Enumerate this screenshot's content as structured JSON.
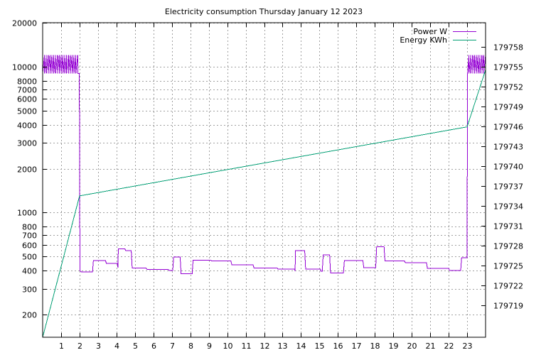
{
  "chart_data": {
    "type": "line",
    "title": "Electricity consumption Thursday January 12 2023",
    "xlabel": "",
    "ylabel": "",
    "xlim": [
      0,
      24
    ],
    "ylim_left": [
      140,
      20000
    ],
    "ylim_left_scale": "log",
    "ylim_right": [
      179714.2,
      179761.6
    ],
    "x_ticks": [
      "1",
      "2",
      "3",
      "4",
      "5",
      "6",
      "7",
      "8",
      "9",
      "10",
      "11",
      "12",
      "13",
      "14",
      "15",
      "16",
      "17",
      "18",
      "19",
      "20",
      "21",
      "22",
      "23"
    ],
    "y_left_ticks": [
      {
        "value": 200,
        "label": "200"
      },
      {
        "value": 300,
        "label": "300"
      },
      {
        "value": 400,
        "label": "400"
      },
      {
        "value": 500,
        "label": "500"
      },
      {
        "value": 600,
        "label": "600"
      },
      {
        "value": 700,
        "label": "700"
      },
      {
        "value": 800,
        "label": "800"
      },
      {
        "value": 1000,
        "label": "1000"
      },
      {
        "value": 2000,
        "label": "2000"
      },
      {
        "value": 3000,
        "label": "3000"
      },
      {
        "value": 4000,
        "label": "4000"
      },
      {
        "value": 5000,
        "label": "5000"
      },
      {
        "value": 6000,
        "label": "6000"
      },
      {
        "value": 7000,
        "label": "7000"
      },
      {
        "value": 8000,
        "label": "8000"
      },
      {
        "value": 10000,
        "label": "10000"
      },
      {
        "value": 20000,
        "label": "20000"
      }
    ],
    "y_right_ticks": [
      {
        "value": 179719,
        "label": "179719"
      },
      {
        "value": 179722,
        "label": "179722"
      },
      {
        "value": 179725,
        "label": "179725"
      },
      {
        "value": 179728,
        "label": "179728"
      },
      {
        "value": 179731,
        "label": "179731"
      },
      {
        "value": 179734,
        "label": "179734"
      },
      {
        "value": 179737,
        "label": "179737"
      },
      {
        "value": 179740,
        "label": "179740"
      },
      {
        "value": 179743,
        "label": "179743"
      },
      {
        "value": 179746,
        "label": "179746"
      },
      {
        "value": 179749,
        "label": "179749"
      },
      {
        "value": 179752,
        "label": "179752"
      },
      {
        "value": 179755,
        "label": "179755"
      },
      {
        "value": 179758,
        "label": "179758"
      }
    ],
    "grid": true,
    "legend_placement": "top-right",
    "series": [
      {
        "name": "Power W",
        "axis": "left",
        "color": "#9400d3",
        "steps": [
          [
            0.0,
            12000
          ],
          [
            0.0,
            9000
          ],
          [
            0.1,
            12000
          ],
          [
            0.1,
            9000
          ],
          [
            0.2,
            12000
          ],
          [
            0.2,
            9000
          ],
          [
            0.3,
            12000
          ],
          [
            0.3,
            9000
          ],
          [
            0.4,
            12000
          ],
          [
            0.4,
            9000
          ],
          [
            0.5,
            12000
          ],
          [
            0.5,
            9000
          ],
          [
            0.6,
            12000
          ],
          [
            0.6,
            9000
          ],
          [
            0.7,
            12000
          ],
          [
            0.7,
            9000
          ],
          [
            0.8,
            12000
          ],
          [
            0.8,
            9000
          ],
          [
            0.9,
            12000
          ],
          [
            0.9,
            9000
          ],
          [
            1.0,
            12000
          ],
          [
            1.0,
            9000
          ],
          [
            1.1,
            12000
          ],
          [
            1.1,
            9000
          ],
          [
            1.2,
            12000
          ],
          [
            1.2,
            9000
          ],
          [
            1.3,
            12000
          ],
          [
            1.3,
            9000
          ],
          [
            1.4,
            12000
          ],
          [
            1.4,
            9000
          ],
          [
            1.5,
            12000
          ],
          [
            1.5,
            9000
          ],
          [
            1.6,
            12000
          ],
          [
            1.6,
            9000
          ],
          [
            1.7,
            12000
          ],
          [
            1.7,
            9000
          ],
          [
            1.8,
            12000
          ],
          [
            1.8,
            9000
          ],
          [
            1.9,
            12000
          ],
          [
            1.9,
            9000
          ],
          [
            1.98,
            9000
          ],
          [
            2.0,
            4000
          ],
          [
            2.02,
            400
          ],
          [
            2.1,
            392
          ],
          [
            2.7,
            392
          ],
          [
            2.75,
            470
          ],
          [
            3.4,
            470
          ],
          [
            3.45,
            450
          ],
          [
            4.05,
            450
          ],
          [
            4.08,
            420
          ],
          [
            4.1,
            565
          ],
          [
            4.45,
            565
          ],
          [
            4.5,
            550
          ],
          [
            4.8,
            550
          ],
          [
            4.85,
            418
          ],
          [
            5.6,
            418
          ],
          [
            5.65,
            408
          ],
          [
            6.8,
            408
          ],
          [
            6.85,
            402
          ],
          [
            7.05,
            402
          ],
          [
            7.1,
            495
          ],
          [
            7.45,
            495
          ],
          [
            7.5,
            382
          ],
          [
            8.1,
            382
          ],
          [
            8.15,
            472
          ],
          [
            9.1,
            472
          ],
          [
            9.15,
            466
          ],
          [
            10.2,
            466
          ],
          [
            10.25,
            440
          ],
          [
            11.4,
            440
          ],
          [
            11.45,
            418
          ],
          [
            12.7,
            418
          ],
          [
            12.75,
            410
          ],
          [
            13.65,
            410
          ],
          [
            13.68,
            398
          ],
          [
            13.7,
            548
          ],
          [
            14.2,
            548
          ],
          [
            14.25,
            410
          ],
          [
            15.05,
            410
          ],
          [
            15.08,
            396
          ],
          [
            15.15,
            396
          ],
          [
            15.2,
            512
          ],
          [
            15.55,
            512
          ],
          [
            15.6,
            385
          ],
          [
            16.3,
            385
          ],
          [
            16.35,
            470
          ],
          [
            17.35,
            470
          ],
          [
            17.4,
            420
          ],
          [
            18.05,
            420
          ],
          [
            18.1,
            585
          ],
          [
            18.5,
            585
          ],
          [
            18.55,
            468
          ],
          [
            19.6,
            468
          ],
          [
            19.65,
            455
          ],
          [
            20.8,
            455
          ],
          [
            20.85,
            415
          ],
          [
            22.0,
            415
          ],
          [
            22.05,
            402
          ],
          [
            22.65,
            402
          ],
          [
            22.7,
            490
          ],
          [
            23.0,
            490
          ],
          [
            23.02,
            9000
          ],
          [
            23.1,
            12000
          ],
          [
            23.1,
            9000
          ],
          [
            23.2,
            12000
          ],
          [
            23.2,
            9000
          ],
          [
            23.3,
            12000
          ],
          [
            23.3,
            9000
          ],
          [
            23.4,
            12000
          ],
          [
            23.4,
            9000
          ],
          [
            23.5,
            12000
          ],
          [
            23.5,
            9000
          ],
          [
            23.6,
            12000
          ],
          [
            23.6,
            9000
          ],
          [
            23.7,
            12000
          ],
          [
            23.7,
            9000
          ],
          [
            23.8,
            12000
          ],
          [
            23.8,
            9000
          ],
          [
            23.9,
            12000
          ],
          [
            23.9,
            9000
          ],
          [
            24.0,
            12000
          ],
          [
            24.0,
            9000
          ]
        ]
      },
      {
        "name": "Energy KWh",
        "axis": "right",
        "color": "#009e73",
        "points": [
          [
            0.0,
            179714.2
          ],
          [
            2.0,
            179735.5
          ],
          [
            23.0,
            179745.9
          ],
          [
            24.0,
            179754.5
          ]
        ]
      }
    ]
  }
}
